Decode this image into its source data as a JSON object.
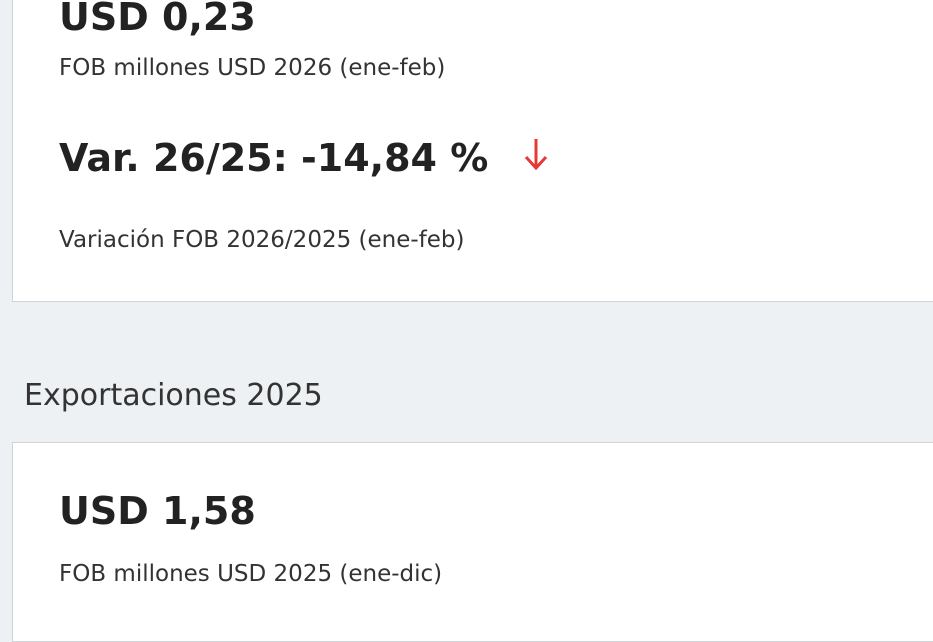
{
  "cards": [
    {
      "value": "USD 0,23",
      "caption": "FOB millones USD 2026 (ene-feb)",
      "variation": "Var. 26/25: -14,84 %",
      "variation_caption": "Variación FOB 2026/2025 (ene-feb)"
    }
  ],
  "section": {
    "title": "Exportaciones 2025"
  },
  "cards2": [
    {
      "value": "USD 1,58",
      "caption": "FOB millones USD 2025 (ene-dic)"
    }
  ]
}
